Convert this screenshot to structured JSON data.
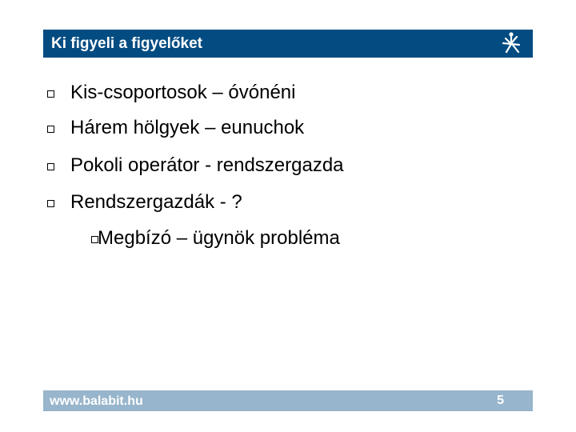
{
  "header": {
    "title": "Ki figyeli a figyelőket",
    "logo_icon": "balabit-logo-icon",
    "color": "#034c82"
  },
  "bullets": [
    {
      "text": "Kis-csoportosok – óvónéni",
      "level": 1
    },
    {
      "text": "Hárem hölgyek – eunuchok",
      "level": 1
    },
    {
      "text": "Pokoli operátor - rendszergazda",
      "level": 1
    },
    {
      "text": "Rendszergazdák - ?",
      "level": 1
    },
    {
      "text": "Megbízó – ügynök probléma",
      "level": 2
    }
  ],
  "footer": {
    "url": "www.balabit.hu",
    "page_number": "5",
    "color": "#97b5cc"
  }
}
